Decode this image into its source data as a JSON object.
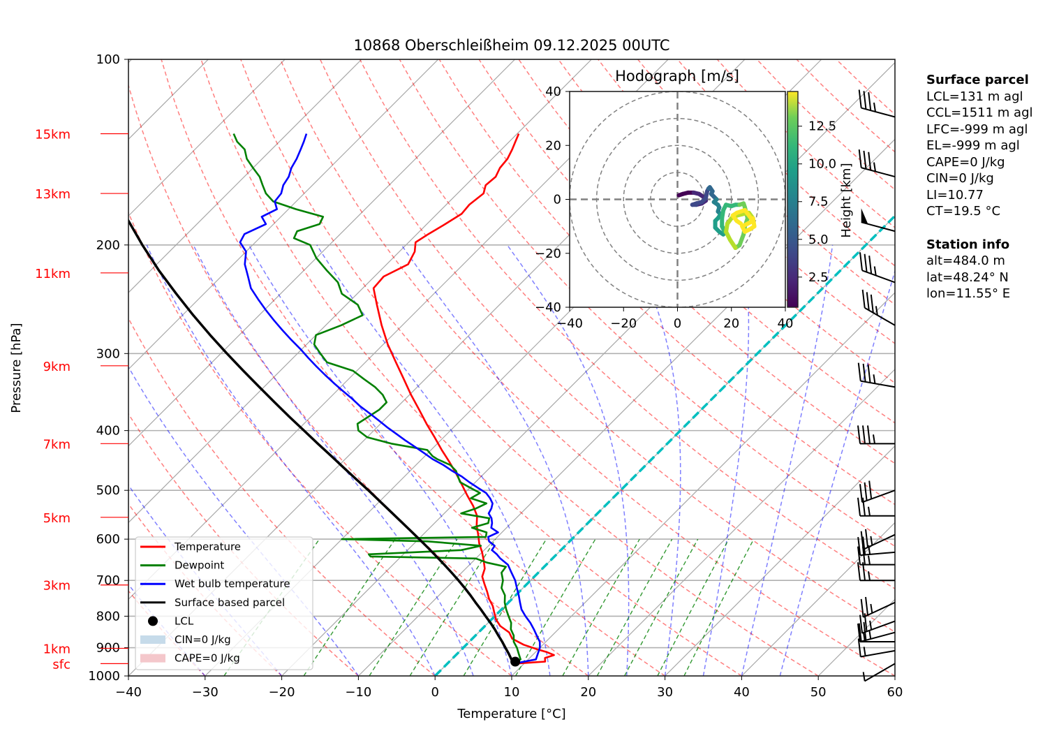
{
  "chart_data": {
    "type": "line",
    "subtype": "skew-t log-p sounding",
    "title": "10868 Oberschleißheim 09.12.2025 00UTC",
    "xlabel": "Temperature [°C]",
    "ylabel": "Pressure [hPa]",
    "xlim": [
      -40,
      60
    ],
    "ylim": [
      1000,
      100
    ],
    "x_ticks": [
      -40,
      -30,
      -20,
      -10,
      0,
      10,
      20,
      30,
      40,
      50,
      60
    ],
    "y_ticks": [
      100,
      200,
      300,
      400,
      500,
      600,
      700,
      800,
      900,
      1000
    ],
    "height_labels": [
      {
        "label": "15km",
        "p": 132
      },
      {
        "label": "13km",
        "p": 165
      },
      {
        "label": "11km",
        "p": 222
      },
      {
        "label": "9km",
        "p": 314
      },
      {
        "label": "7km",
        "p": 420
      },
      {
        "label": "5km",
        "p": 553
      },
      {
        "label": "3km",
        "p": 712
      },
      {
        "label": "1km",
        "p": 902
      },
      {
        "label": "sfc",
        "p": 955
      }
    ],
    "grid": true,
    "legend_position": "lower-left",
    "legend": [
      {
        "label": "Temperature",
        "kind": "line",
        "color": "#ff0000"
      },
      {
        "label": "Dewpoint",
        "kind": "line",
        "color": "#008000"
      },
      {
        "label": "Wet bulb temperature",
        "kind": "line",
        "color": "#0000ff"
      },
      {
        "label": "Surface based parcel",
        "kind": "line",
        "color": "#000000"
      },
      {
        "label": "LCL",
        "kind": "marker",
        "color": "#000000"
      },
      {
        "label": "CIN=0 J/kg",
        "kind": "patch",
        "color": "#c6dbea"
      },
      {
        "label": "CAPE=0 J/kg",
        "kind": "patch",
        "color": "#f4c7cb"
      }
    ],
    "series": [
      {
        "name": "Temperature",
        "color": "#ff0000",
        "p": [
          955,
          948,
          935,
          925,
          915,
          905,
          890,
          870,
          850,
          830,
          810,
          790,
          770,
          750,
          730,
          710,
          690,
          670,
          650,
          630,
          610,
          590,
          570,
          550,
          530,
          510,
          490,
          470,
          450,
          430,
          410,
          390,
          370,
          350,
          330,
          310,
          290,
          270,
          250,
          235,
          225,
          215,
          205,
          198,
          192,
          185,
          178,
          172,
          165,
          160,
          155,
          150,
          145,
          140,
          136,
          132
        ],
        "t": [
          8.8,
          12.5,
          12.0,
          12.8,
          11.5,
          9.8,
          7.5,
          5.2,
          4.0,
          2.0,
          0.6,
          -0.5,
          -1.6,
          -3.0,
          -4.2,
          -5.5,
          -6.8,
          -7.5,
          -8.7,
          -10.0,
          -11.5,
          -12.8,
          -14.2,
          -15.4,
          -17.2,
          -19.3,
          -21.4,
          -23.6,
          -26.0,
          -28.6,
          -31.2,
          -34.0,
          -36.8,
          -39.8,
          -42.8,
          -46.0,
          -49.4,
          -52.7,
          -56.0,
          -58.6,
          -58.8,
          -57.2,
          -58.0,
          -59.1,
          -58.5,
          -57.6,
          -56.8,
          -57.0,
          -56.6,
          -57.4,
          -57.2,
          -57.8,
          -58.0,
          -58.6,
          -59.2,
          -59.8
        ]
      },
      {
        "name": "Dewpoint",
        "color": "#008000",
        "p": [
          955,
          940,
          920,
          900,
          880,
          860,
          840,
          820,
          800,
          780,
          760,
          740,
          720,
          700,
          680,
          665,
          655,
          645,
          640,
          635,
          625,
          615,
          605,
          600,
          595,
          585,
          575,
          565,
          555,
          545,
          535,
          525,
          515,
          505,
          495,
          485,
          475,
          465,
          455,
          445,
          440,
          430,
          420,
          410,
          400,
          390,
          380,
          370,
          360,
          350,
          340,
          330,
          320,
          310,
          300,
          290,
          280,
          270,
          260,
          250,
          240,
          230,
          220,
          210,
          200,
          195,
          190,
          185,
          180,
          175,
          170,
          165,
          160,
          155,
          150,
          145,
          140,
          136,
          132
        ],
        "t": [
          8.5,
          9.0,
          8.0,
          7.0,
          5.8,
          5.0,
          3.8,
          3.0,
          1.8,
          0.6,
          -0.5,
          -1.4,
          -2.8,
          -3.6,
          -4.8,
          -5.0,
          -8.0,
          -10.0,
          -24.0,
          -24.5,
          -13.0,
          -11.0,
          -18.5,
          -30.0,
          -11.5,
          -12.0,
          -14.5,
          -13.0,
          -13.5,
          -17.8,
          -16.5,
          -15.8,
          -18.5,
          -18.0,
          -20.0,
          -22.0,
          -23.0,
          -24.0,
          -25.5,
          -28.0,
          -29.0,
          -30.5,
          -36.0,
          -40.0,
          -42.0,
          -43.0,
          -42.5,
          -42.0,
          -42.0,
          -43.5,
          -45.5,
          -48.0,
          -50.5,
          -55.0,
          -57.0,
          -59.0,
          -60.0,
          -58.0,
          -56.5,
          -58.5,
          -62.0,
          -64.0,
          -67.0,
          -70.0,
          -72.5,
          -75.5,
          -76.0,
          -74.0,
          -74.5,
          -79.0,
          -83.0,
          -85.0,
          -86.5,
          -88.0,
          -90.0,
          -92.0,
          -93.5,
          -95.5,
          -97.0
        ]
      },
      {
        "name": "Wet bulb temperature",
        "color": "#0000ff",
        "p": [
          955,
          940,
          920,
          900,
          880,
          860,
          840,
          820,
          800,
          780,
          760,
          740,
          720,
          700,
          680,
          660,
          645,
          635,
          625,
          615,
          605,
          595,
          585,
          575,
          565,
          555,
          545,
          535,
          525,
          515,
          505,
          495,
          485,
          475,
          465,
          455,
          445,
          435,
          425,
          415,
          405,
          395,
          385,
          375,
          365,
          355,
          345,
          335,
          325,
          315,
          305,
          295,
          285,
          275,
          265,
          255,
          245,
          235,
          225,
          215,
          205,
          198,
          192,
          185,
          180,
          175,
          170,
          165,
          160,
          155,
          150,
          145,
          140,
          136,
          132
        ],
        "t": [
          8.7,
          11.0,
          10.5,
          10.0,
          9.2,
          8.0,
          6.8,
          5.5,
          4.0,
          2.6,
          1.5,
          0.4,
          -0.8,
          -2.0,
          -3.5,
          -5.0,
          -6.8,
          -7.8,
          -9.0,
          -9.2,
          -10.5,
          -11.2,
          -10.5,
          -12.0,
          -12.5,
          -13.2,
          -14.2,
          -14.5,
          -15.0,
          -16.0,
          -17.2,
          -19.0,
          -20.8,
          -22.5,
          -24.5,
          -26.4,
          -28.6,
          -30.5,
          -32.5,
          -34.6,
          -36.6,
          -38.7,
          -40.7,
          -42.8,
          -45.0,
          -47.0,
          -49.2,
          -51.4,
          -53.6,
          -55.8,
          -58.0,
          -60.2,
          -62.6,
          -65.0,
          -67.4,
          -69.8,
          -72.2,
          -74.6,
          -76.5,
          -78.5,
          -80.0,
          -82.0,
          -82.5,
          -81.0,
          -82.5,
          -81.5,
          -82.8,
          -83.0,
          -83.8,
          -84.2,
          -85.0,
          -85.5,
          -86.2,
          -86.8,
          -87.5
        ]
      },
      {
        "name": "Surface based parcel",
        "color": "#000000",
        "p": [
          955,
          940,
          920,
          900,
          880,
          860,
          840,
          820,
          800,
          780,
          760,
          740,
          720,
          700,
          680,
          660,
          640,
          620,
          600,
          580,
          560,
          540,
          520,
          500,
          480,
          460,
          440,
          420,
          400,
          380,
          360,
          340,
          320,
          300,
          280,
          260,
          240,
          220,
          200,
          180,
          165
        ],
        "t": [
          8.7,
          7.8,
          6.7,
          5.5,
          4.3,
          3.0,
          1.7,
          0.3,
          -1.2,
          -2.7,
          -4.3,
          -5.9,
          -7.6,
          -9.4,
          -11.3,
          -13.3,
          -15.4,
          -17.6,
          -19.9,
          -22.3,
          -24.8,
          -27.4,
          -30.1,
          -32.9,
          -35.9,
          -39.0,
          -42.2,
          -45.6,
          -49.1,
          -52.8,
          -56.6,
          -60.6,
          -64.8,
          -69.2,
          -73.8,
          -78.6,
          -83.6,
          -88.9,
          -94.4,
          -100.2,
          -104.8
        ]
      }
    ],
    "lcl": {
      "p": 948,
      "t": 8.6
    },
    "freezing_level_line": {
      "color": "#00bfbf",
      "style": "dashed"
    },
    "background_lines": {
      "isotherms_every_c": 10,
      "dry_adiabats_color": "#ff0000",
      "moist_adiabats_color": "#0000ff",
      "mixing_ratio_color": "#008000"
    },
    "wind_barbs": [
      {
        "p": 955,
        "speed_kt": 5,
        "dir_deg": 240
      },
      {
        "p": 910,
        "speed_kt": 15,
        "dir_deg": 260
      },
      {
        "p": 880,
        "speed_kt": 15,
        "dir_deg": 270
      },
      {
        "p": 850,
        "speed_kt": 25,
        "dir_deg": 255
      },
      {
        "p": 815,
        "speed_kt": 25,
        "dir_deg": 250
      },
      {
        "p": 760,
        "speed_kt": 25,
        "dir_deg": 245
      },
      {
        "p": 700,
        "speed_kt": 25,
        "dir_deg": 270
      },
      {
        "p": 660,
        "speed_kt": 25,
        "dir_deg": 270
      },
      {
        "p": 630,
        "speed_kt": 25,
        "dir_deg": 265
      },
      {
        "p": 590,
        "speed_kt": 25,
        "dir_deg": 245
      },
      {
        "p": 550,
        "speed_kt": 25,
        "dir_deg": 270
      },
      {
        "p": 500,
        "speed_kt": 30,
        "dir_deg": 250
      },
      {
        "p": 420,
        "speed_kt": 35,
        "dir_deg": 270
      },
      {
        "p": 340,
        "speed_kt": 35,
        "dir_deg": 280
      },
      {
        "p": 270,
        "speed_kt": 35,
        "dir_deg": 300
      },
      {
        "p": 230,
        "speed_kt": 35,
        "dir_deg": 290
      },
      {
        "p": 190,
        "speed_kt": 50,
        "dir_deg": 285
      },
      {
        "p": 155,
        "speed_kt": 35,
        "dir_deg": 285
      },
      {
        "p": 124,
        "speed_kt": 35,
        "dir_deg": 285
      }
    ],
    "hodograph": {
      "title": "Hodograph [m/s]",
      "xlim": [
        -40,
        40
      ],
      "ylim": [
        -40,
        40
      ],
      "x_ticks": [
        -40,
        -20,
        0,
        20,
        40
      ],
      "y_ticks": [
        -40,
        -20,
        0,
        20,
        40
      ],
      "rings": [
        10,
        20,
        30,
        40
      ],
      "colorbar_label": "Height [km]",
      "colorbar_ticks": [
        2.5,
        5.0,
        7.5,
        10.0,
        12.5
      ],
      "colorbar_range": [
        0.5,
        14.8
      ],
      "u": [
        0.5,
        2,
        4,
        6,
        8,
        9.5,
        10.5,
        9,
        7,
        5.5,
        7,
        9,
        10.5,
        11,
        11.5,
        12,
        13,
        12.5,
        13.5,
        14.5,
        13.5,
        15,
        15.5,
        15,
        16,
        15,
        14,
        14,
        15.5,
        17,
        17.5,
        16.5,
        16.5,
        17,
        18,
        20,
        21.5,
        23,
        24.5,
        25,
        25.5,
        26,
        25,
        24.5,
        23,
        21.5,
        19.5,
        18,
        18.5,
        20,
        22,
        24,
        26.5,
        28,
        28.5,
        27,
        25,
        24,
        26,
        28,
        25,
        22,
        20.5,
        22,
        23.5
      ],
      "v": [
        1.5,
        2,
        2.5,
        2.5,
        2,
        1,
        -0.5,
        -1.5,
        -2,
        -2,
        -1.5,
        -1,
        0.5,
        3,
        4,
        4.5,
        3,
        2,
        1,
        0,
        -1,
        -2,
        -3,
        -4.5,
        -5.5,
        -7,
        -8,
        -10.5,
        -12,
        -13,
        -12,
        -10,
        -7,
        -4,
        -2,
        -2.5,
        -2,
        -2,
        -1.5,
        -3,
        -5,
        -7,
        -10,
        -13,
        -17,
        -18,
        -15,
        -12,
        -9,
        -7,
        -6,
        -5.5,
        -5,
        -7,
        -10,
        -11,
        -12,
        -10,
        -9,
        -8,
        -4,
        -5,
        -6,
        -8,
        -9
      ],
      "h": [
        0.5,
        0.8,
        1.1,
        1.4,
        1.7,
        2.0,
        2.3,
        2.6,
        2.9,
        3.2,
        3.5,
        3.8,
        4.1,
        4.4,
        4.7,
        5.0,
        5.3,
        5.6,
        5.9,
        6.2,
        6.5,
        6.8,
        7.1,
        7.4,
        7.7,
        8.0,
        8.3,
        8.6,
        8.9,
        9.2,
        9.5,
        9.8,
        10.0,
        10.2,
        10.4,
        10.6,
        10.8,
        11.0,
        11.2,
        11.4,
        11.6,
        11.8,
        12.0,
        12.2,
        12.4,
        12.6,
        12.8,
        13.0,
        13.2,
        13.4,
        13.6,
        13.8,
        14.0,
        14.1,
        14.2,
        14.3,
        14.4,
        14.5,
        14.6,
        14.7,
        14.75,
        14.8,
        14.8,
        14.8,
        14.8
      ]
    }
  },
  "info": {
    "surface_parcel_heading": "Surface parcel",
    "surface_parcel": [
      "LCL=131 m agl",
      "CCL=1511 m agl",
      "LFC=-999 m agl",
      "EL=-999 m agl",
      "CAPE=0 J/kg",
      "CIN=0 J/kg",
      "LI=10.77",
      "CT=19.5 °C"
    ],
    "station_heading": "Station info",
    "station": [
      "alt=484.0 m",
      "lat=48.24° N",
      "lon=11.55° E"
    ]
  }
}
